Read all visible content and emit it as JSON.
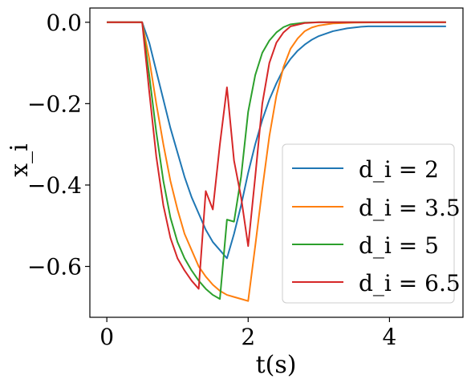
{
  "chart_data": {
    "type": "line",
    "xlabel": "t(s)",
    "ylabel": "x_i",
    "xlim": [
      -0.24,
      5.04
    ],
    "ylim": [
      -0.725,
      0.035
    ],
    "xticks": [
      0,
      2,
      4
    ],
    "yticks": [
      0.0,
      -0.2,
      -0.4,
      -0.6
    ],
    "xtick_labels": [
      "0",
      "2",
      "4"
    ],
    "ytick_labels": [
      "0.0",
      "−0.2",
      "−0.4",
      "−0.6"
    ],
    "grid": false,
    "legend_position": "lower-right",
    "series": [
      {
        "name": "d_i = 2",
        "color": "#1f77b4",
        "points": [
          [
            0,
            0
          ],
          [
            0.5,
            0
          ],
          [
            0.6,
            -0.05
          ],
          [
            0.7,
            -0.12
          ],
          [
            0.8,
            -0.19
          ],
          [
            0.9,
            -0.26
          ],
          [
            1.0,
            -0.32
          ],
          [
            1.1,
            -0.38
          ],
          [
            1.2,
            -0.43
          ],
          [
            1.3,
            -0.47
          ],
          [
            1.4,
            -0.51
          ],
          [
            1.5,
            -0.54
          ],
          [
            1.6,
            -0.56
          ],
          [
            1.7,
            -0.58
          ],
          [
            1.8,
            -0.52
          ],
          [
            1.9,
            -0.45
          ],
          [
            2.0,
            -0.37
          ],
          [
            2.1,
            -0.3
          ],
          [
            2.2,
            -0.24
          ],
          [
            2.3,
            -0.19
          ],
          [
            2.4,
            -0.15
          ],
          [
            2.5,
            -0.115
          ],
          [
            2.6,
            -0.09
          ],
          [
            2.7,
            -0.07
          ],
          [
            2.8,
            -0.055
          ],
          [
            2.9,
            -0.043
          ],
          [
            3.0,
            -0.034
          ],
          [
            3.2,
            -0.022
          ],
          [
            3.4,
            -0.015
          ],
          [
            3.6,
            -0.011
          ],
          [
            3.7,
            -0.01
          ],
          [
            4.0,
            -0.01
          ],
          [
            4.4,
            -0.01
          ],
          [
            4.8,
            -0.01
          ]
        ]
      },
      {
        "name": "d_i = 3.5",
        "color": "#ff7f0e",
        "points": [
          [
            0,
            0
          ],
          [
            0.5,
            0
          ],
          [
            0.6,
            -0.09
          ],
          [
            0.7,
            -0.2
          ],
          [
            0.8,
            -0.3
          ],
          [
            0.9,
            -0.39
          ],
          [
            1.0,
            -0.46
          ],
          [
            1.1,
            -0.52
          ],
          [
            1.2,
            -0.56
          ],
          [
            1.3,
            -0.6
          ],
          [
            1.4,
            -0.625
          ],
          [
            1.5,
            -0.645
          ],
          [
            1.6,
            -0.66
          ],
          [
            1.7,
            -0.67
          ],
          [
            1.8,
            -0.675
          ],
          [
            1.9,
            -0.68
          ],
          [
            2.0,
            -0.685
          ],
          [
            2.1,
            -0.55
          ],
          [
            2.2,
            -0.41
          ],
          [
            2.3,
            -0.28
          ],
          [
            2.4,
            -0.18
          ],
          [
            2.5,
            -0.11
          ],
          [
            2.6,
            -0.065
          ],
          [
            2.7,
            -0.04
          ],
          [
            2.8,
            -0.022
          ],
          [
            2.9,
            -0.013
          ],
          [
            3.0,
            -0.008
          ],
          [
            3.2,
            -0.003
          ],
          [
            3.5,
            -0.001
          ],
          [
            4.0,
            0
          ],
          [
            4.8,
            0
          ]
        ]
      },
      {
        "name": "d_i = 5",
        "color": "#2ca02c",
        "points": [
          [
            0,
            0
          ],
          [
            0.5,
            0
          ],
          [
            0.6,
            -0.13
          ],
          [
            0.7,
            -0.27
          ],
          [
            0.8,
            -0.39
          ],
          [
            0.9,
            -0.48
          ],
          [
            1.0,
            -0.54
          ],
          [
            1.1,
            -0.58
          ],
          [
            1.2,
            -0.61
          ],
          [
            1.3,
            -0.635
          ],
          [
            1.4,
            -0.655
          ],
          [
            1.5,
            -0.67
          ],
          [
            1.6,
            -0.68
          ],
          [
            1.7,
            -0.485
          ],
          [
            1.8,
            -0.49
          ],
          [
            1.9,
            -0.38
          ],
          [
            2.0,
            -0.22
          ],
          [
            2.1,
            -0.13
          ],
          [
            2.2,
            -0.075
          ],
          [
            2.3,
            -0.045
          ],
          [
            2.4,
            -0.025
          ],
          [
            2.5,
            -0.012
          ],
          [
            2.6,
            -0.005
          ],
          [
            2.8,
            -0.001
          ],
          [
            3.0,
            0
          ],
          [
            4.0,
            0
          ],
          [
            4.8,
            0
          ]
        ]
      },
      {
        "name": "d_i = 6.5",
        "color": "#d62728",
        "points": [
          [
            0,
            0
          ],
          [
            0.5,
            0
          ],
          [
            0.6,
            -0.17
          ],
          [
            0.7,
            -0.33
          ],
          [
            0.8,
            -0.45
          ],
          [
            0.9,
            -0.53
          ],
          [
            1.0,
            -0.58
          ],
          [
            1.1,
            -0.61
          ],
          [
            1.2,
            -0.635
          ],
          [
            1.3,
            -0.655
          ],
          [
            1.4,
            -0.415
          ],
          [
            1.5,
            -0.46
          ],
          [
            1.6,
            -0.3
          ],
          [
            1.7,
            -0.16
          ],
          [
            1.8,
            -0.34
          ],
          [
            1.9,
            -0.43
          ],
          [
            2.0,
            -0.55
          ],
          [
            2.1,
            -0.38
          ],
          [
            2.2,
            -0.2
          ],
          [
            2.3,
            -0.1
          ],
          [
            2.4,
            -0.05
          ],
          [
            2.5,
            -0.025
          ],
          [
            2.6,
            -0.01
          ],
          [
            2.8,
            -0.002
          ],
          [
            3.0,
            0
          ],
          [
            4.0,
            0
          ],
          [
            4.8,
            0
          ]
        ]
      }
    ]
  }
}
